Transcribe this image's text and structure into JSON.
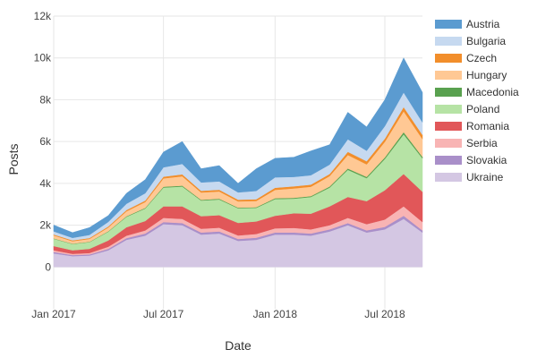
{
  "chart_data": {
    "type": "area",
    "stacked": true,
    "xlabel": "Date",
    "ylabel": "Posts",
    "ylim": [
      -2000,
      12000
    ],
    "yticks": [
      0,
      2000,
      4000,
      6000,
      8000,
      10000,
      12000
    ],
    "ytick_labels": [
      "0",
      "2k",
      "4k",
      "6k",
      "8k",
      "10k",
      "12k"
    ],
    "xlim": [
      "2017-01-01",
      "2018-09-01"
    ],
    "xticks": [
      "2017-01-01",
      "2017-07-01",
      "2018-01-01",
      "2018-07-01"
    ],
    "xtick_labels": [
      "Jan 2017",
      "Jul 2017",
      "Jan 2018",
      "Jul 2018"
    ],
    "grid": true,
    "legend_position": "right",
    "x": [
      "2017-01-01",
      "2017-02-01",
      "2017-03-01",
      "2017-04-01",
      "2017-05-01",
      "2017-06-01",
      "2017-07-01",
      "2017-08-01",
      "2017-09-01",
      "2017-10-01",
      "2017-11-01",
      "2017-12-01",
      "2018-01-01",
      "2018-02-01",
      "2018-03-01",
      "2018-04-01",
      "2018-05-01",
      "2018-06-01",
      "2018-07-01",
      "2018-08-01",
      "2018-09-01"
    ],
    "series": [
      {
        "name": "Ukraine",
        "color": "#d4c7e3",
        "values": [
          650,
          520,
          550,
          800,
          1300,
          1500,
          2050,
          2000,
          1550,
          1600,
          1250,
          1300,
          1550,
          1550,
          1500,
          1700,
          2000,
          1650,
          1800,
          2300,
          1650
        ]
      },
      {
        "name": "Slovakia",
        "color": "#a98fc9",
        "values": [
          70,
          50,
          50,
          70,
          80,
          100,
          100,
          100,
          100,
          100,
          90,
          100,
          100,
          100,
          100,
          100,
          100,
          100,
          120,
          150,
          100
        ]
      },
      {
        "name": "Serbia",
        "color": "#f8b4b4",
        "values": [
          80,
          60,
          70,
          100,
          120,
          150,
          200,
          200,
          180,
          180,
          170,
          180,
          200,
          220,
          200,
          200,
          250,
          300,
          350,
          450,
          400
        ]
      },
      {
        "name": "Romania",
        "color": "#e15759",
        "values": [
          200,
          170,
          200,
          300,
          400,
          450,
          550,
          600,
          600,
          600,
          600,
          600,
          600,
          700,
          750,
          900,
          1000,
          1100,
          1400,
          1550,
          1450
        ]
      },
      {
        "name": "Poland",
        "color": "#b6e3a5",
        "values": [
          350,
          300,
          320,
          420,
          500,
          600,
          900,
          950,
          750,
          750,
          700,
          650,
          800,
          700,
          800,
          900,
          1300,
          1100,
          1500,
          1900,
          1600
        ]
      },
      {
        "name": "Macedonia",
        "color": "#59a14f",
        "values": [
          15,
          15,
          15,
          20,
          25,
          30,
          40,
          40,
          35,
          35,
          30,
          30,
          40,
          40,
          40,
          50,
          60,
          60,
          70,
          100,
          70
        ]
      },
      {
        "name": "Hungary",
        "color": "#ffc894",
        "values": [
          150,
          120,
          140,
          180,
          240,
          280,
          400,
          450,
          350,
          350,
          300,
          300,
          400,
          450,
          450,
          500,
          650,
          600,
          750,
          1000,
          850
        ]
      },
      {
        "name": "Czech",
        "color": "#f28e2b",
        "values": [
          40,
          40,
          40,
          50,
          60,
          70,
          80,
          90,
          80,
          80,
          80,
          80,
          100,
          100,
          100,
          100,
          150,
          150,
          150,
          200,
          200
        ]
      },
      {
        "name": "Bulgaria",
        "color": "#c6d9f0",
        "values": [
          150,
          120,
          150,
          220,
          300,
          350,
          450,
          500,
          400,
          400,
          350,
          400,
          500,
          450,
          450,
          450,
          600,
          500,
          600,
          700,
          600
        ]
      },
      {
        "name": "Austria",
        "color": "#5b9bd0",
        "values": [
          300,
          250,
          350,
          300,
          500,
          650,
          730,
          1070,
          655,
          755,
          430,
          1060,
          910,
          940,
          1160,
          950,
          1290,
          1140,
          1260,
          1650,
          1430
        ]
      }
    ],
    "legend_order": [
      "Austria",
      "Bulgaria",
      "Czech",
      "Hungary",
      "Macedonia",
      "Poland",
      "Romania",
      "Serbia",
      "Slovakia",
      "Ukraine"
    ]
  }
}
